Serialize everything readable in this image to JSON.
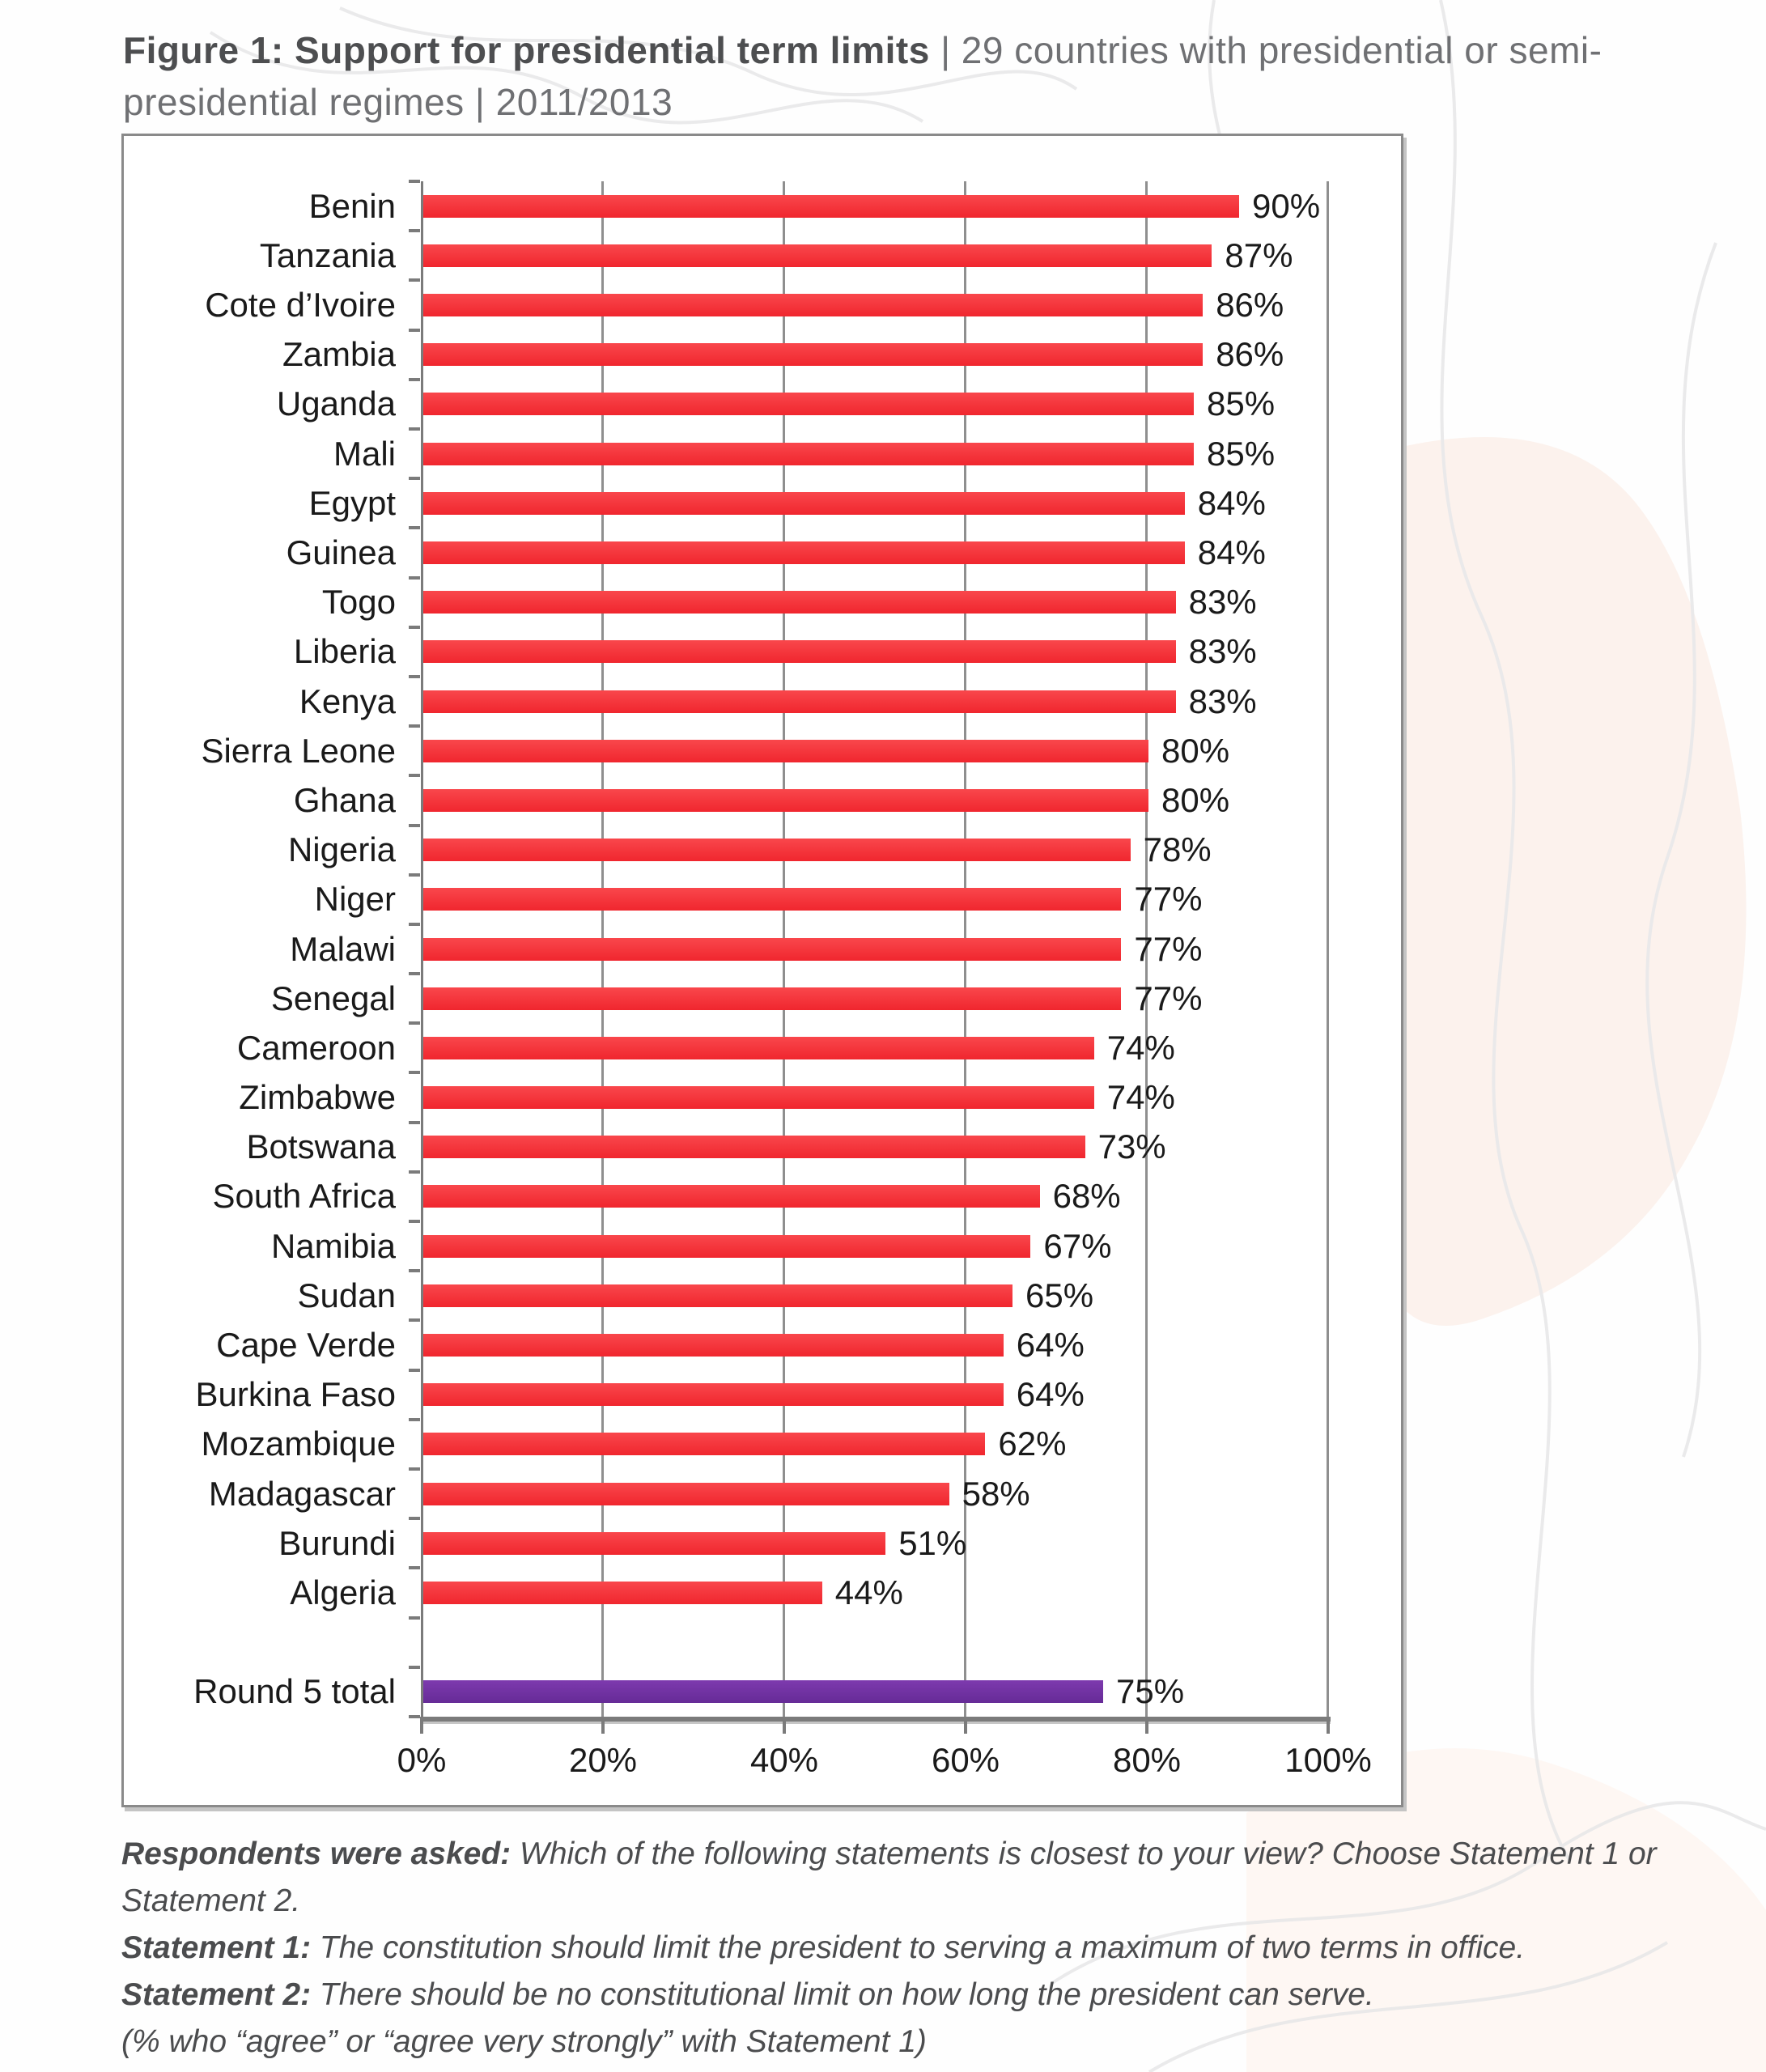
{
  "title": {
    "bold": "Figure 1: Support for presidential term limits",
    "rest": " | 29 countries with presidential or semi-presidential regimes | 2011/2013"
  },
  "chart_data": {
    "type": "bar",
    "orientation": "horizontal",
    "title": "Support for presidential term limits | 29 countries with presidential or semi-presidential regimes | 2011/2013",
    "unit": "%",
    "categories": [
      "Benin",
      "Tanzania",
      "Cote d’Ivoire",
      "Zambia",
      "Uganda",
      "Mali",
      "Egypt",
      "Guinea",
      "Togo",
      "Liberia",
      "Kenya",
      "Sierra Leone",
      "Ghana",
      "Nigeria",
      "Niger",
      "Malawi",
      "Senegal",
      "Cameroon",
      "Zimbabwe",
      "Botswana",
      "South Africa",
      "Namibia",
      "Sudan",
      "Cape Verde",
      "Burkina Faso",
      "Mozambique",
      "Madagascar",
      "Burundi",
      "Algeria"
    ],
    "values": [
      90,
      87,
      86,
      86,
      85,
      85,
      84,
      84,
      83,
      83,
      83,
      80,
      80,
      78,
      77,
      77,
      77,
      74,
      74,
      73,
      68,
      67,
      65,
      64,
      64,
      62,
      58,
      51,
      44
    ],
    "total_row": {
      "label": "Round 5 total",
      "value": 75
    },
    "xlim": [
      0,
      100
    ],
    "x_tick_values": [
      0,
      20,
      40,
      60,
      80,
      100
    ],
    "x_tick_labels": [
      "0%",
      "20%",
      "40%",
      "60%",
      "80%",
      "100%"
    ],
    "grid": "vertical-only",
    "legend": "none",
    "colors": {
      "bar": "#F0262E",
      "total_bar": "#6F2DA0",
      "gridline": "#8F8F8F",
      "axis": "#7B7B7B",
      "label_text": "#1A1A1A"
    }
  },
  "footer": {
    "asked_label": "Respondents were asked:",
    "asked_text": " Which of the following statements is closest to your view? Choose Statement 1 or Statement 2.",
    "statement1_label": "Statement 1:",
    "statement1_text": "  The constitution should limit the president to serving a maximum of two terms in office.",
    "statement2_label": "Statement 2:",
    "statement2_text": " There should be no constitutional limit on how long the president can serve.",
    "note": "(% who “agree” or “agree very strongly” with Statement 1)"
  }
}
